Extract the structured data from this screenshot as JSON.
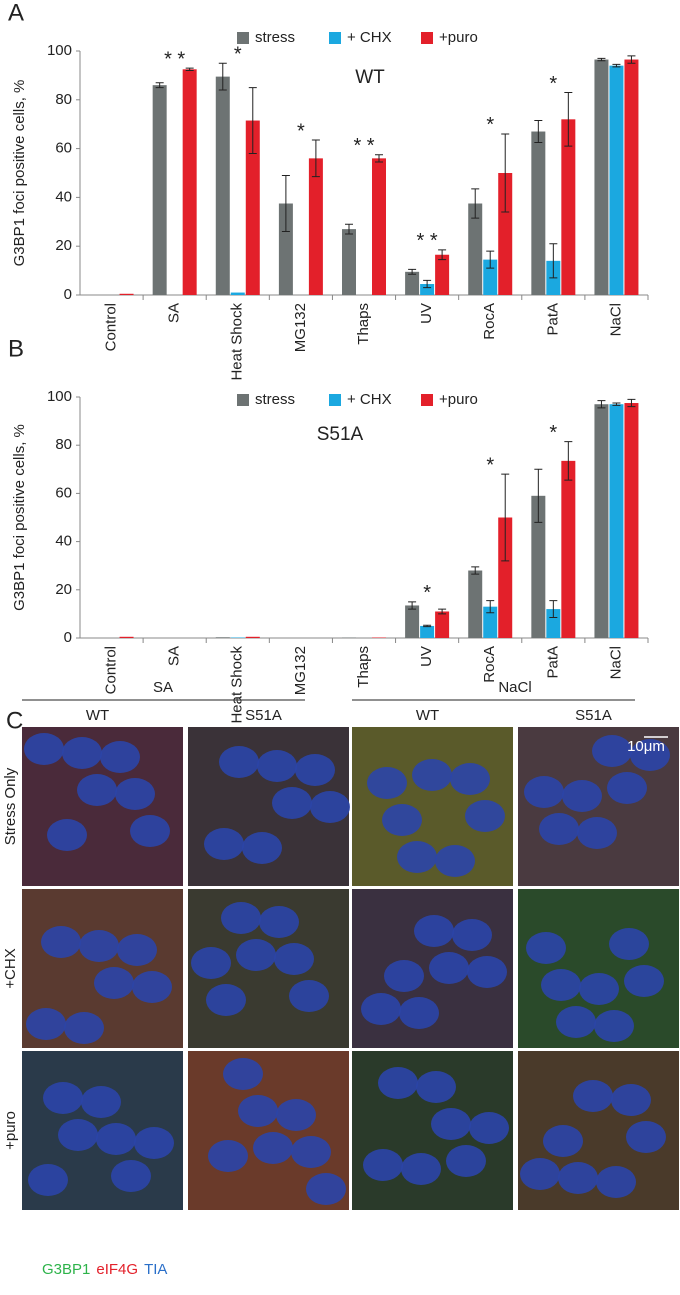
{
  "panel_labels": [
    "A",
    "B",
    "C"
  ],
  "chart_data": [
    {
      "type": "bar",
      "label": "WT",
      "y_label": "G3BP1 foci positive cells, %",
      "categories": [
        "Control",
        "SA",
        "Heat Shock",
        "MG132",
        "Thaps",
        "UV",
        "RocA",
        "PatA",
        "NaCl"
      ],
      "series": [
        {
          "name": "stress",
          "color": "#6d7373",
          "values": [
            0,
            86,
            89.5,
            37.5,
            27,
            9.5,
            37.5,
            67,
            96.5
          ],
          "errors": [
            0,
            1,
            5.5,
            11.5,
            2,
            1,
            6,
            4.5,
            0.5
          ]
        },
        {
          "name": "+ CHX",
          "color": "#1ba8e0",
          "values": [
            0,
            0,
            1,
            0,
            0,
            4.5,
            14.5,
            14,
            94
          ],
          "errors": [
            0,
            0,
            0,
            0,
            0,
            1.5,
            3.5,
            7,
            0.5
          ]
        },
        {
          "name": "+puro",
          "color": "#e3202a",
          "values": [
            0.5,
            92.5,
            71.5,
            56,
            56,
            16.5,
            50,
            72,
            96.5
          ],
          "errors": [
            0,
            0.5,
            13.5,
            7.5,
            1.5,
            2,
            16,
            11,
            1.5
          ]
        }
      ],
      "annotations": [
        null,
        "* *",
        "*",
        "*",
        "* *",
        "* *",
        "*",
        "*",
        null
      ],
      "ylim": [
        0,
        100
      ],
      "yticks": [
        0,
        20,
        40,
        60,
        80,
        100
      ],
      "legend": "top"
    },
    {
      "type": "bar",
      "label": "S51A",
      "y_label": "G3BP1 foci positive cells, %",
      "categories": [
        "Control",
        "SA",
        "Heat Shock",
        "MG132",
        "Thaps",
        "UV",
        "RocA",
        "PatA",
        "NaCl"
      ],
      "series": [
        {
          "name": "stress",
          "color": "#6d7373",
          "values": [
            0,
            0,
            0.3,
            0,
            0.2,
            13.5,
            28,
            59,
            97
          ],
          "errors": [
            0,
            0,
            0,
            0,
            0,
            1.5,
            1.5,
            11,
            1.5
          ]
        },
        {
          "name": "+ CHX",
          "color": "#1ba8e0",
          "values": [
            0,
            0,
            0.2,
            0,
            0,
            5,
            13,
            12,
            97
          ],
          "errors": [
            0,
            0,
            0,
            0,
            0,
            0.3,
            2.5,
            3.5,
            0.5
          ]
        },
        {
          "name": "+puro",
          "color": "#e3202a",
          "values": [
            0.5,
            0,
            0.5,
            0,
            0.2,
            11,
            50,
            73.5,
            97.5
          ],
          "errors": [
            0,
            0,
            0,
            0,
            0,
            1,
            18,
            8,
            1.5
          ]
        }
      ],
      "annotations": [
        null,
        null,
        null,
        null,
        null,
        "*",
        "*",
        "*",
        null
      ],
      "ylim": [
        0,
        100
      ],
      "yticks": [
        0,
        20,
        40,
        60,
        80,
        100
      ],
      "legend": "top"
    }
  ],
  "panel_c": {
    "groups": [
      "SA",
      "NaCl"
    ],
    "columns": [
      "WT",
      "S51A",
      "WT",
      "S51A"
    ],
    "rows": [
      "Stress Only",
      "+CHX",
      "+puro"
    ],
    "scale_bar": "10μm",
    "stains": [
      {
        "name": "G3BP1",
        "color": "#2db34a"
      },
      {
        "name": "eIF4G",
        "color": "#e3202a"
      },
      {
        "name": "TIA",
        "color": "#2a6fc9"
      }
    ]
  }
}
